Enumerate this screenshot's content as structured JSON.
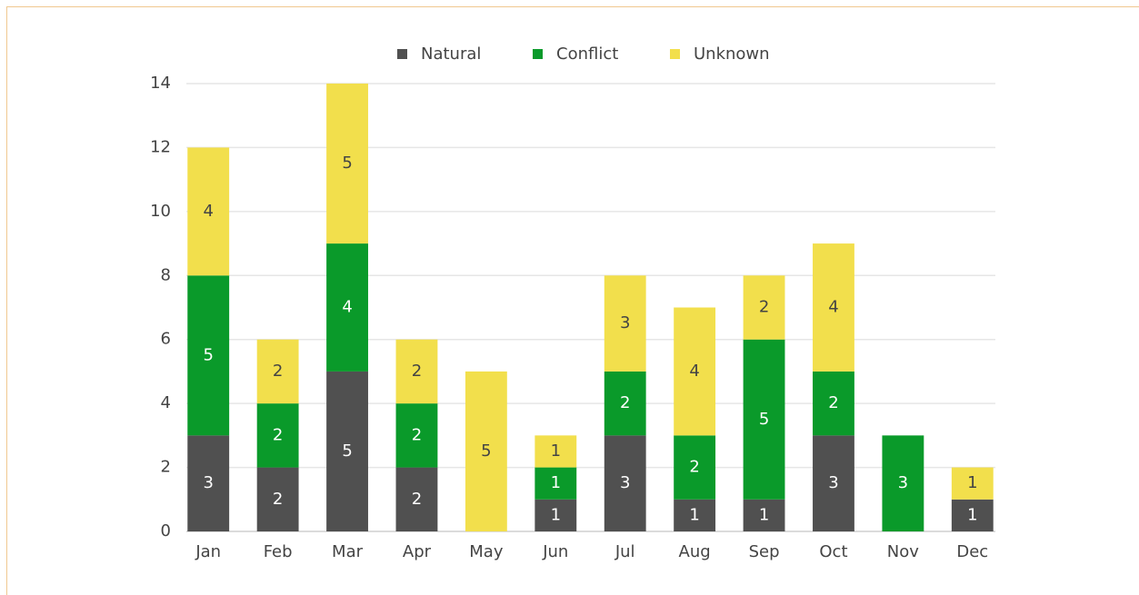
{
  "chart_data": {
    "type": "stacked_bar",
    "categories": [
      "Jan",
      "Feb",
      "Mar",
      "Apr",
      "May",
      "Jun",
      "Jul",
      "Aug",
      "Sep",
      "Oct",
      "Nov",
      "Dec"
    ],
    "series": [
      {
        "name": "Natural",
        "color": "#505050",
        "label_color": "#ffffff",
        "values": [
          3,
          2,
          5,
          2,
          0,
          1,
          3,
          1,
          1,
          3,
          0,
          1
        ]
      },
      {
        "name": "Conflict",
        "color": "#0a9a2a",
        "label_color": "#ffffff",
        "values": [
          5,
          2,
          4,
          2,
          0,
          1,
          2,
          2,
          5,
          2,
          3,
          0
        ]
      },
      {
        "name": "Unknown",
        "color": "#f2df4c",
        "label_color": "#444444",
        "values": [
          4,
          2,
          5,
          2,
          5,
          1,
          3,
          4,
          2,
          4,
          0,
          1
        ]
      }
    ],
    "ylim": [
      0,
      14
    ],
    "yticks": [
      0,
      2,
      4,
      6,
      8,
      10,
      12,
      14
    ],
    "grid": true,
    "legend": "top"
  }
}
